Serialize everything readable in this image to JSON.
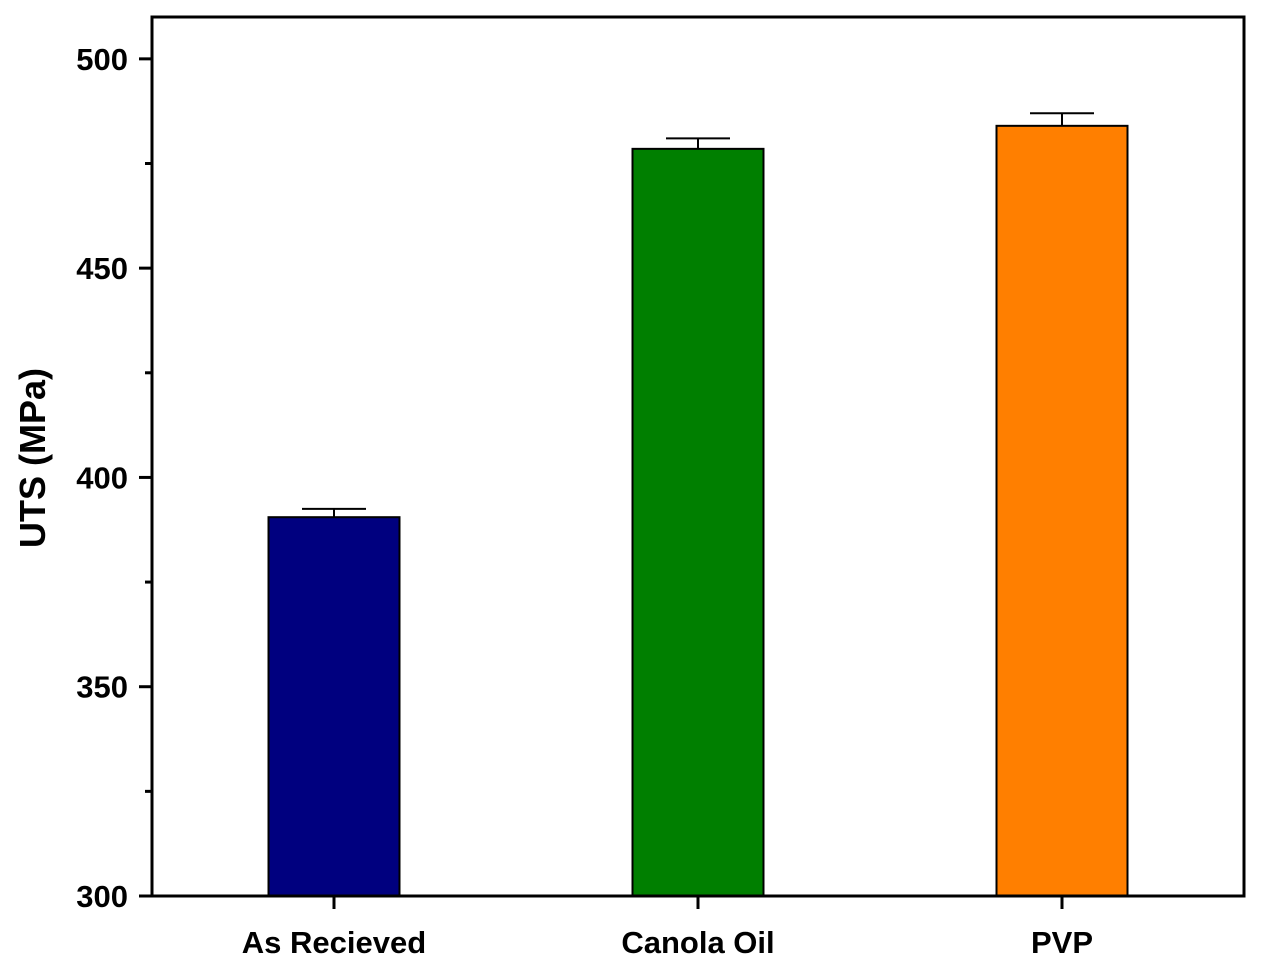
{
  "chart_data": {
    "type": "bar",
    "title": "",
    "xlabel": "",
    "ylabel": "UTS (MPa)",
    "ylim": [
      300,
      510
    ],
    "y_major_ticks": [
      300,
      350,
      400,
      450,
      500
    ],
    "y_minor_ticks": [
      325,
      375,
      425,
      475
    ],
    "categories": [
      "As Recieved",
      "Canola Oil",
      "PVP"
    ],
    "values": [
      390.5,
      478.5,
      484
    ],
    "errors": [
      2,
      2.5,
      3
    ],
    "colors": [
      "#00007f",
      "#007f00",
      "#ff7f00"
    ],
    "grid": false,
    "legend": "none"
  }
}
